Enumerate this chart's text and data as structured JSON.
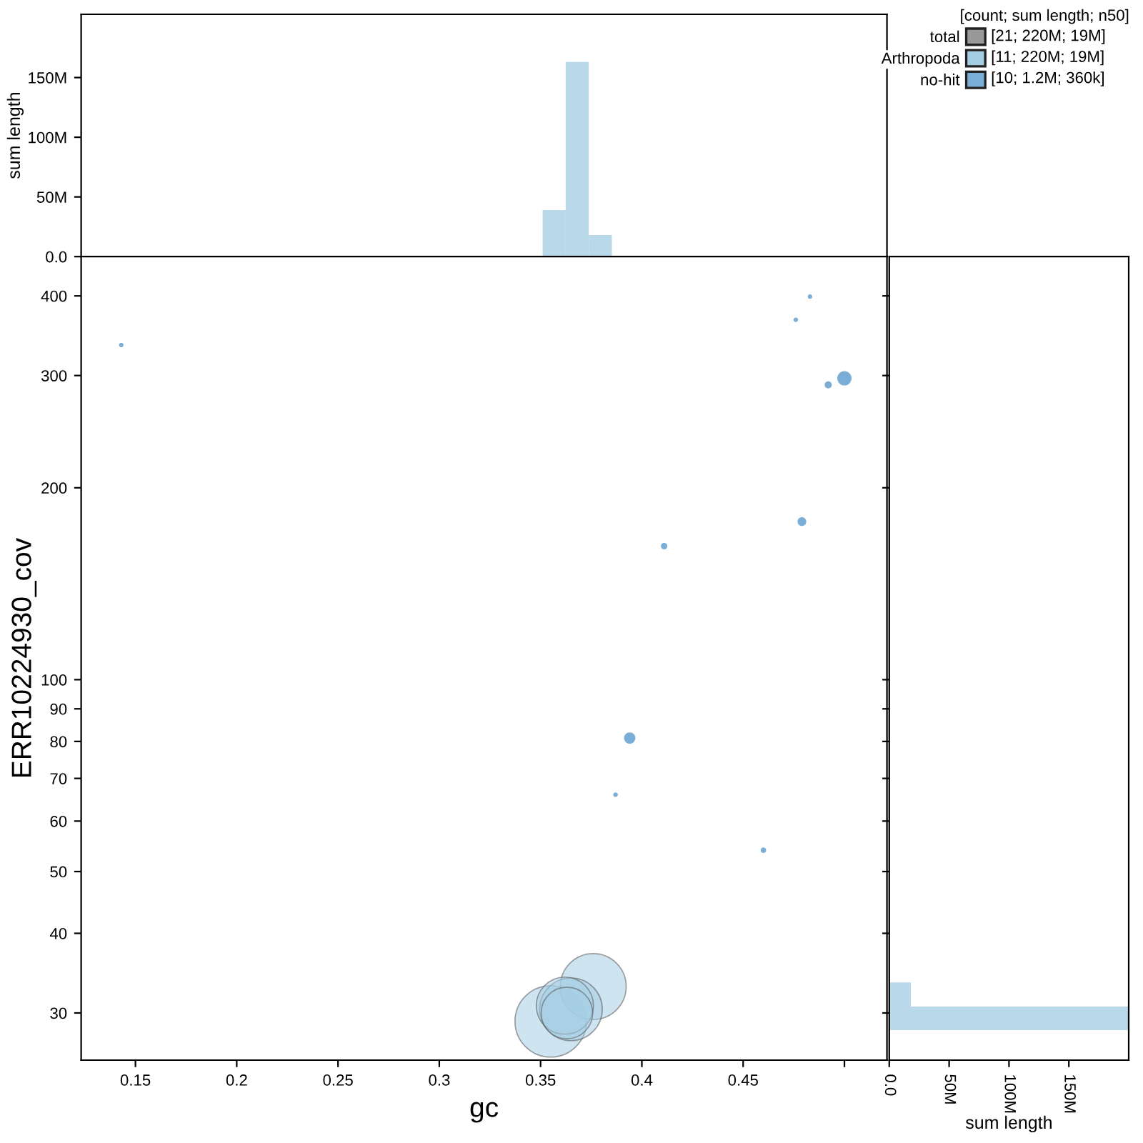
{
  "chart_data": [
    {
      "type": "histogram",
      "ylabel": "sum length",
      "bins": [
        0.351,
        0.3624,
        0.3738,
        0.3852,
        0.3966,
        0.408,
        0.4194,
        0.4308,
        0.4422,
        0.4536,
        0.465,
        0.4764,
        0.4878,
        0.4992
      ],
      "values": [
        39000000,
        163000000,
        18000000,
        null,
        0,
        0,
        0,
        0,
        0,
        0,
        0,
        0,
        null
      ],
      "color": "#b9d8ea",
      "xlim": [
        0.1232,
        0.521
      ],
      "xticks": [
        0.15,
        0.2,
        0.25,
        0.3,
        0.35,
        0.4,
        0.45,
        0.5
      ],
      "ylim": [
        0,
        203000000
      ],
      "yticks": [
        {
          "value": 0,
          "label": "0.0"
        },
        {
          "value": 50000000,
          "label": "50M"
        },
        {
          "value": 100000000,
          "label": "100M"
        },
        {
          "value": 150000000,
          "label": "150M"
        }
      ],
      "tick_labels": "y"
    },
    {
      "type": "bubble",
      "xlabel": "gc",
      "ylabel": "ERR10224930_cov",
      "log": "y",
      "legend": "top right",
      "legend_title": "[count; sum length; n50]",
      "series": [
        {
          "name": "total",
          "color": "#999999"
        },
        {
          "name": "Arthropoda",
          "color": "#a6cee3",
          "x": [
            0.355,
            0.376,
            0.365,
            0.362,
            0.363
          ],
          "values": [
            29.1,
            33,
            30.4,
            30.8,
            30
          ],
          "sizes": [
            1.0,
            0.85,
            0.77,
            0.64,
            0.52
          ]
        },
        {
          "name": "no-hit",
          "color": "#7aaed6",
          "x": [
            0.143,
            0.483,
            0.476,
            0.492,
            0.5,
            0.479,
            0.411,
            0.394,
            0.387,
            0.46
          ],
          "values": [
            335,
            399,
            367,
            290,
            297,
            177,
            162,
            81,
            66,
            54
          ],
          "sizes": [
            0.004,
            0.004,
            0.004,
            0.01,
            0.04,
            0.015,
            0.008,
            0.025,
            0.004,
            0.006
          ]
        }
      ],
      "annotations": [
        "[21; 220M; 19M]",
        "[11; 220M; 19M]",
        "[10; 1.2M; 360k]"
      ],
      "xlim": [
        0.1232,
        0.521
      ],
      "xticks": [
        0.15,
        0.2,
        0.25,
        0.3,
        0.35,
        0.4,
        0.45,
        {
          "value": 0.5,
          "label": null
        }
      ],
      "ylim": [
        25.3,
        461
      ],
      "yticks": [
        30,
        40,
        50,
        60,
        70,
        80,
        90,
        100,
        200,
        300,
        400
      ]
    },
    {
      "type": "histogram",
      "orientation": "horizontal",
      "xlabel": "sum length",
      "log": "y",
      "bins": [
        28.2,
        30.7,
        33.5
      ],
      "values": [
        200000000,
        18000000
      ],
      "color": "#b9d8ea",
      "xlim": [
        0,
        200000000
      ],
      "xticks": [
        {
          "value": 0,
          "label": "0.0"
        },
        {
          "value": 50000000,
          "label": "50M"
        },
        {
          "value": 100000000,
          "label": "100M"
        },
        {
          "value": 150000000,
          "label": "150M"
        }
      ],
      "ylim": [
        25.3,
        461
      ],
      "yticks": [
        30,
        40,
        50,
        60,
        70,
        80,
        90,
        100,
        200,
        300,
        400
      ],
      "tick_labels": "x"
    }
  ]
}
